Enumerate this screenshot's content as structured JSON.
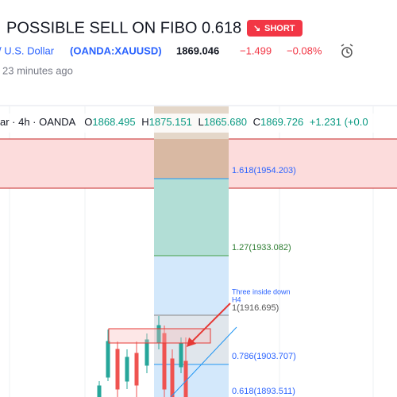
{
  "header": {
    "title": "POSSIBLE SELL ON FIBO 0.618",
    "badge": "SHORT"
  },
  "symbol": {
    "name": "/ U.S. Dollar",
    "ticker": "(OANDA:XAUUSD)",
    "price": "1869.046",
    "change": "−1.499",
    "change_pct": "−0.08%",
    "time": "23 minutes ago"
  },
  "legend": {
    "interval": "ar · 4h · OANDA",
    "o_label": "O",
    "o": "1868.495",
    "h_label": "H",
    "h": "1875.151",
    "l_label": "L",
    "l": "1865.680",
    "c_label": "C",
    "c": "1869.726",
    "change": "+1.231 (+0.0"
  },
  "fib": {
    "levels": [
      "1.618(1954.203)",
      "1.27(1933.082)",
      "1(1916.695)",
      "0.786(1903.707)",
      "0.618(1893.511)"
    ]
  },
  "annotation": {
    "line1": "Three inside down",
    "line2": "H4"
  }
}
